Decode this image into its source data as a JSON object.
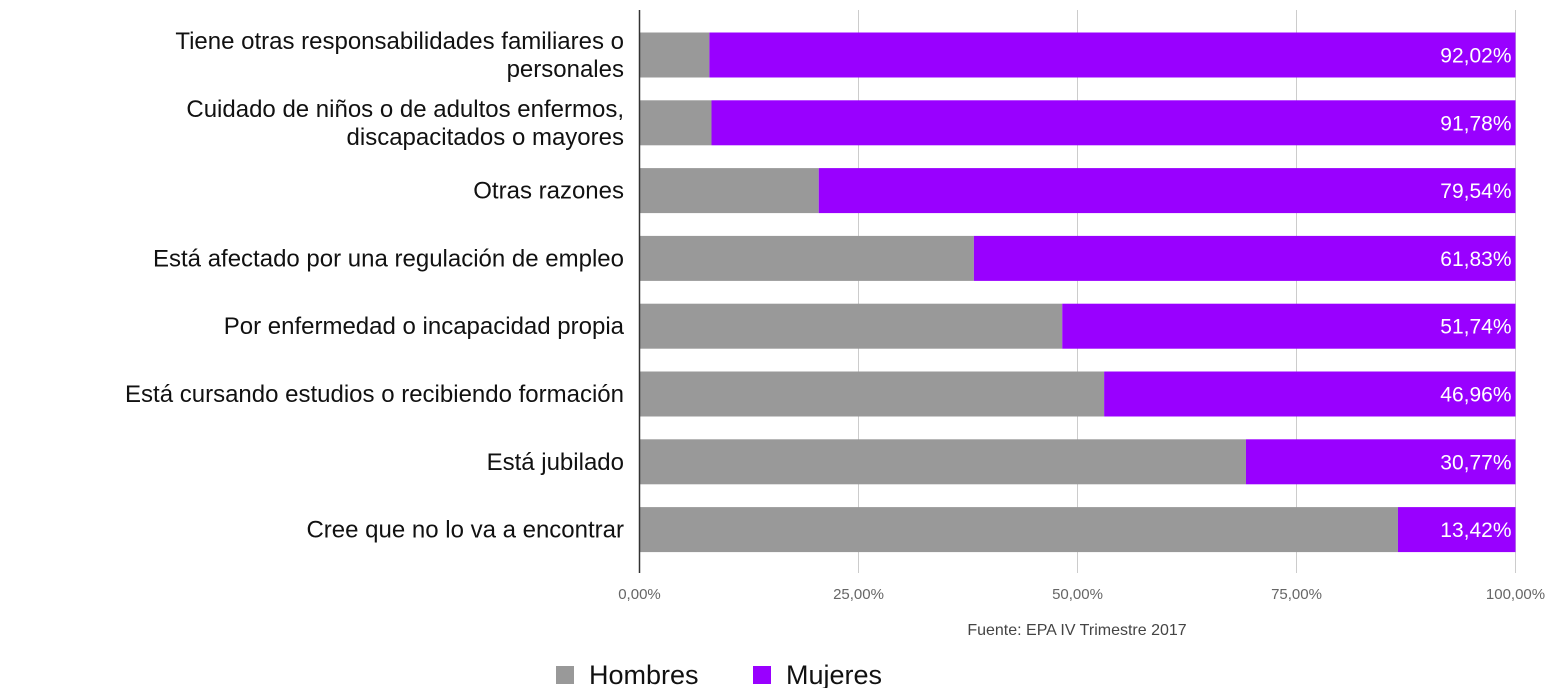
{
  "chart_data": {
    "type": "bar",
    "orientation": "horizontal",
    "stacked": true,
    "categories": [
      [
        "Tiene otras responsabilidades familiares o",
        "personales"
      ],
      [
        "Cuidado de niños o de adultos enfermos,",
        "discapacitados o mayores"
      ],
      [
        "Otras razones"
      ],
      [
        "Está afectado por una regulación de empleo"
      ],
      [
        "Por enfermedad o incapacidad propia"
      ],
      [
        "Está cursando estudios o recibiendo formación"
      ],
      [
        "Está jubilado"
      ],
      [
        "Cree que no lo va a encontrar"
      ]
    ],
    "series": [
      {
        "name": "Hombres",
        "color": "#999999",
        "values": [
          7.98,
          8.22,
          20.46,
          38.17,
          48.26,
          53.04,
          69.23,
          86.58
        ]
      },
      {
        "name": "Mujeres",
        "color": "#9900ff",
        "values": [
          92.02,
          91.78,
          79.54,
          61.83,
          51.74,
          46.96,
          30.77,
          13.42
        ],
        "data_labels": [
          "92,02%",
          "91,78%",
          "79,54%",
          "61,83%",
          "51,74%",
          "46,96%",
          "30,77%",
          "13,42%"
        ]
      }
    ],
    "xlim": [
      0,
      100
    ],
    "x_ticks": [
      0,
      25,
      50,
      75,
      100
    ],
    "x_tick_labels": [
      "0,00%",
      "25,00%",
      "50,00%",
      "75,00%",
      "100,00%"
    ],
    "grid": true,
    "legend_position": "bottom",
    "source_note": "Fuente: EPA IV Trimestre 2017"
  }
}
